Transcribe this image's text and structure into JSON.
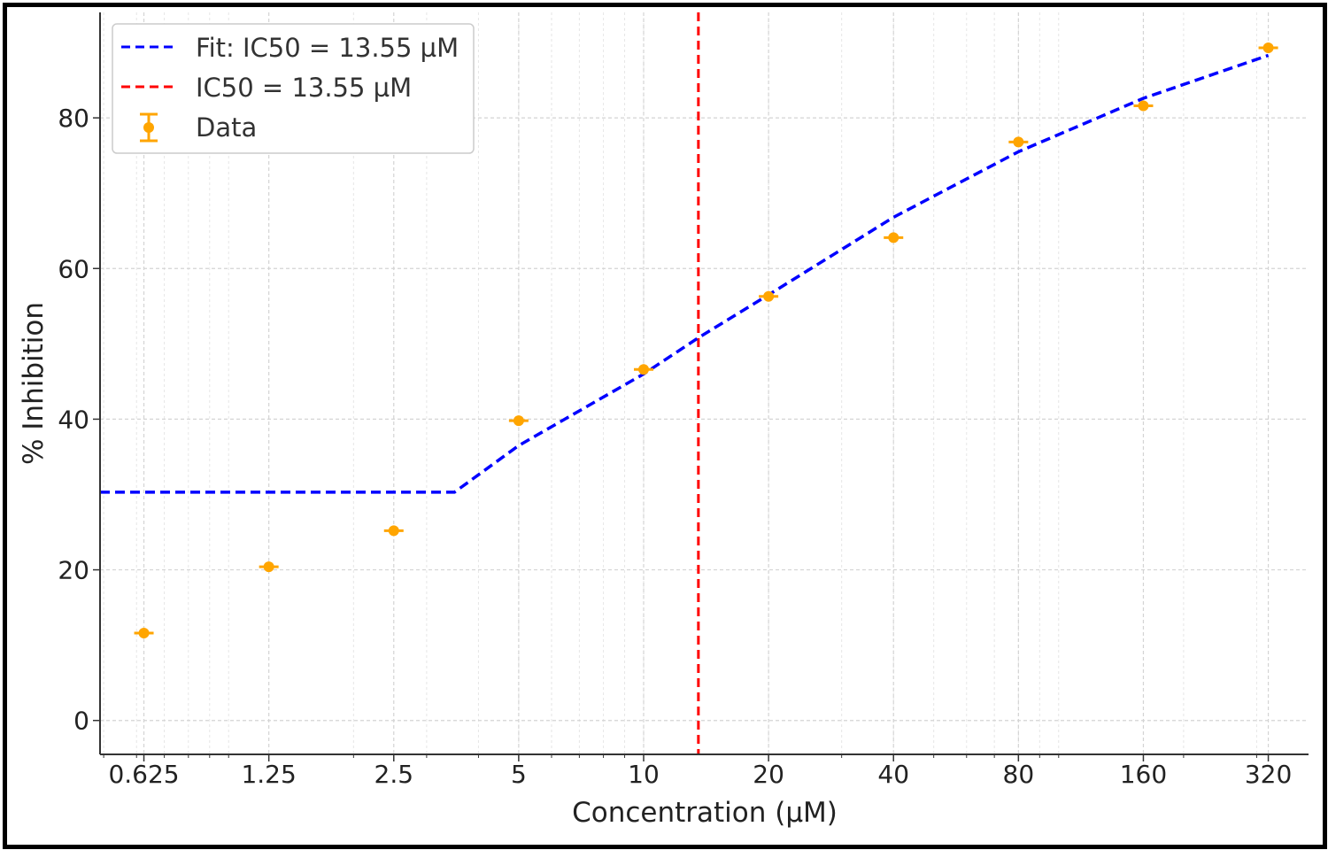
{
  "chart_data": {
    "type": "scatter",
    "title": "",
    "xlabel": "Concentration (µM)",
    "ylabel": "% Inhibition",
    "x_scale": "log2",
    "xlim": [
      0.49,
      400
    ],
    "ylim": [
      -4.5,
      94
    ],
    "x_ticks": [
      0.625,
      1.25,
      2.5,
      5,
      10,
      20,
      40,
      80,
      160,
      320
    ],
    "x_tick_labels": [
      "0.625",
      "1.25",
      "2.5",
      "5",
      "10",
      "20",
      "40",
      "80",
      "160",
      "320"
    ],
    "y_ticks": [
      0,
      20,
      40,
      60,
      80
    ],
    "y_tick_labels": [
      "0",
      "20",
      "40",
      "60",
      "80"
    ],
    "grid": true,
    "legend_position": "upper left",
    "series": [
      {
        "name": "Data",
        "kind": "errorbar",
        "color": "#FFA500",
        "x": [
          0.625,
          1.25,
          2.5,
          5,
          10,
          20,
          40,
          80,
          160,
          320
        ],
        "y": [
          11.6,
          20.4,
          25.2,
          39.8,
          46.6,
          56.3,
          64.1,
          76.8,
          81.6,
          89.3
        ]
      },
      {
        "name": "Fit: IC50 = 13.55 µM",
        "kind": "line",
        "style": "dashed",
        "color": "#0000FF",
        "x": [
          0.49,
          3.5,
          5,
          10,
          13.55,
          20,
          40,
          80,
          160,
          320
        ],
        "y": [
          30.3,
          30.3,
          36.5,
          46.0,
          50.8,
          56.5,
          66.8,
          75.5,
          82.6,
          88.3
        ]
      },
      {
        "name": "IC50 = 13.55 µM",
        "kind": "vline",
        "style": "dashed",
        "color": "#FF0000",
        "x": 13.55
      }
    ]
  }
}
